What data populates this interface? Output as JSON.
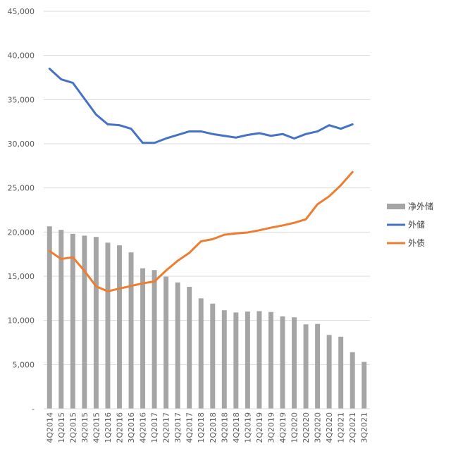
{
  "chart_data": {
    "type": "bar",
    "categories": [
      "4Q2014",
      "1Q2015",
      "2Q2015",
      "3Q2015",
      "4Q2015",
      "1Q2016",
      "2Q2016",
      "3Q2016",
      "4Q2016",
      "1Q2017",
      "2Q2017",
      "3Q2017",
      "4Q2017",
      "1Q2018",
      "2Q2018",
      "3Q2018",
      "4Q2018",
      "1Q2019",
      "2Q2019",
      "3Q2019",
      "4Q2019",
      "1Q2020",
      "2Q2020",
      "3Q2020",
      "4Q2020",
      "1Q2021",
      "2Q2021",
      "3Q2021"
    ],
    "series": [
      {
        "name": "净外储",
        "type": "bar",
        "color": "#a5a5a5",
        "values": [
          20650,
          20250,
          19800,
          19600,
          19450,
          18800,
          18500,
          17700,
          15900,
          15700,
          14950,
          14300,
          13800,
          12500,
          11900,
          11150,
          10900,
          11000,
          11050,
          10950,
          10450,
          10350,
          9550,
          9600,
          8350,
          8150,
          6400,
          5300
        ]
      },
      {
        "name": "外储",
        "type": "line",
        "color": "#4472c4",
        "values": [
          38500,
          37300,
          36900,
          35100,
          33300,
          32200,
          32100,
          31700,
          30100,
          30100,
          30600,
          31000,
          31400,
          31400,
          31100,
          30900,
          30700,
          31000,
          31200,
          30900,
          31100,
          30600,
          31100,
          31400,
          32100,
          31700,
          32200,
          null
        ]
      },
      {
        "name": "外债",
        "type": "line",
        "color": "#ed7d31",
        "values": [
          17850,
          16950,
          17150,
          15600,
          13850,
          13300,
          13600,
          13900,
          14200,
          14400,
          15650,
          16750,
          17650,
          18950,
          19200,
          19700,
          19850,
          19950,
          20200,
          20500,
          20750,
          21050,
          21450,
          23150,
          24050,
          25300,
          26800,
          null
        ]
      }
    ],
    "y_ticks": [
      "-",
      "5,000",
      "10,000",
      "15,000",
      "20,000",
      "25,000",
      "30,000",
      "35,000",
      "40,000",
      "45,000"
    ],
    "ylim": [
      0,
      45000
    ],
    "grid": true,
    "legend_position": "right"
  }
}
